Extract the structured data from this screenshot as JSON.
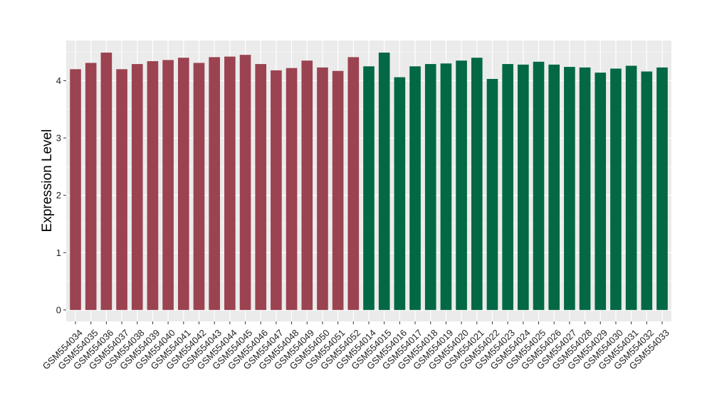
{
  "chart_data": {
    "type": "bar",
    "title": "",
    "xlabel": "",
    "ylabel": "Expression Level",
    "ylim": [
      -0.2,
      4.7
    ],
    "yticks": [
      0,
      1,
      2,
      3,
      4
    ],
    "grid": true,
    "legend": "none",
    "categories": [
      "GSM554034",
      "GSM554035",
      "GSM554036",
      "GSM554037",
      "GSM554038",
      "GSM554039",
      "GSM554040",
      "GSM554041",
      "GSM554042",
      "GSM554043",
      "GSM554044",
      "GSM554045",
      "GSM554046",
      "GSM554047",
      "GSM554048",
      "GSM554049",
      "GSM554050",
      "GSM554051",
      "GSM554052",
      "GSM554014",
      "GSM554015",
      "GSM554016",
      "GSM554017",
      "GSM554018",
      "GSM554019",
      "GSM554020",
      "GSM554021",
      "GSM554022",
      "GSM554023",
      "GSM554024",
      "GSM554025",
      "GSM554026",
      "GSM554027",
      "GSM554028",
      "GSM554029",
      "GSM554030",
      "GSM554031",
      "GSM554032",
      "GSM554033"
    ],
    "values": [
      4.2,
      4.31,
      4.49,
      4.2,
      4.29,
      4.34,
      4.36,
      4.4,
      4.31,
      4.41,
      4.42,
      4.45,
      4.29,
      4.18,
      4.22,
      4.35,
      4.23,
      4.17,
      4.41,
      4.25,
      4.49,
      4.06,
      4.25,
      4.29,
      4.3,
      4.35,
      4.4,
      4.03,
      4.29,
      4.28,
      4.33,
      4.28,
      4.24,
      4.23,
      4.14,
      4.21,
      4.26,
      4.16,
      4.23
    ],
    "groups": [
      {
        "count": 19,
        "color": "#9b4350"
      },
      {
        "count": 20,
        "color": "#036844"
      }
    ],
    "colors": {
      "panel_background": "#ebebeb",
      "gridline": "#ffffff",
      "axis_tick": "#333333"
    }
  }
}
